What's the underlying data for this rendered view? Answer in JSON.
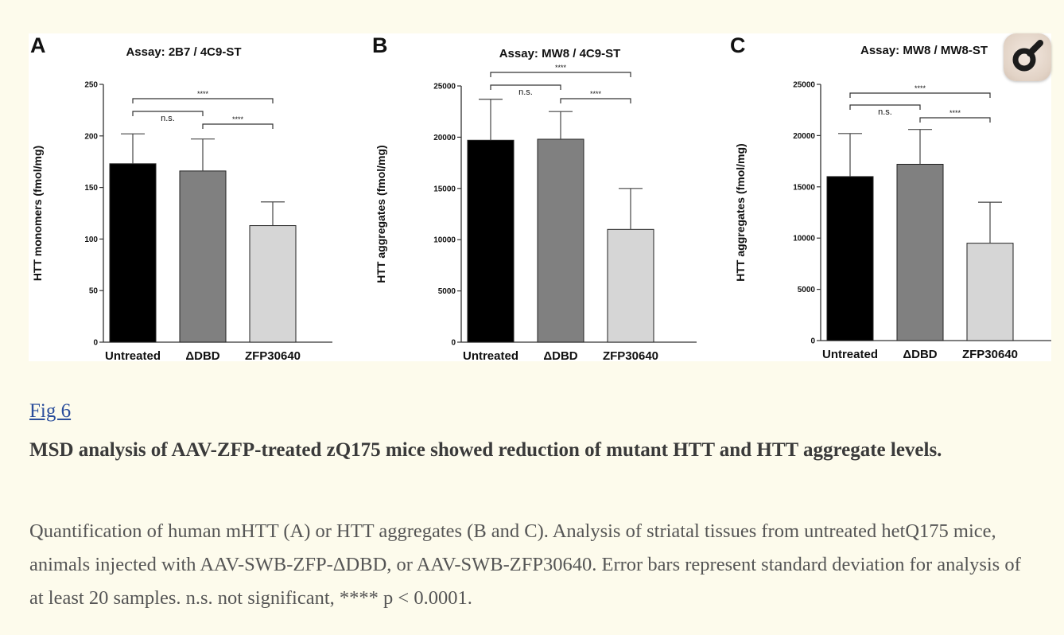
{
  "figure": {
    "link_text": "Fig 6",
    "title": "MSD analysis of AAV-ZFP-treated zQ175 mice showed reduction of mutant HTT and HTT aggregate levels.",
    "caption": "Quantification of human mHTT (A) or HTT aggregates (B and C). Analysis of striatal tissues from untreated hetQ175 mice, animals injected with AAV-SWB-ZFP-ΔDBD, or AAV-SWB-ZFP30640. Error bars represent standard deviation for analysis of at least 20 samples. n.s. not significant, **** p < 0.0001."
  },
  "zoom_icon": "magnifier-icon",
  "colors": {
    "untreated": "#000000",
    "ddbd": "#808080",
    "zfp": "#d6d6d6"
  },
  "chart_data": [
    {
      "type": "bar",
      "panel": "A",
      "title": "Assay: 2B7 / 4C9-ST",
      "ylabel": "HTT monomers (fmol/mg)",
      "xlabel": "",
      "categories": [
        "Untreated",
        "ΔDBD",
        "ZFP30640"
      ],
      "values": [
        173,
        166,
        113
      ],
      "errors": [
        29,
        31,
        23
      ],
      "ylim": [
        0,
        250
      ],
      "yticks": [
        0,
        50,
        100,
        150,
        200,
        250
      ],
      "yticklabels": [
        "0",
        "50",
        "100",
        "150",
        "200",
        "250"
      ],
      "significance": [
        {
          "from": 0,
          "to": 1,
          "label": "n.s."
        },
        {
          "from": 1,
          "to": 2,
          "label": "****"
        },
        {
          "from": 0,
          "to": 2,
          "label": "****"
        }
      ]
    },
    {
      "type": "bar",
      "panel": "B",
      "title": "Assay: MW8 / 4C9-ST",
      "ylabel": "HTT aggregates (fmol/mg)",
      "xlabel": "",
      "categories": [
        "Untreated",
        "ΔDBD",
        "ZFP30640"
      ],
      "values": [
        19700,
        19800,
        11000
      ],
      "errors": [
        4000,
        2700,
        4000
      ],
      "ylim": [
        0,
        25000
      ],
      "yticks": [
        0,
        5000,
        10000,
        15000,
        20000,
        25000
      ],
      "yticklabels": [
        "0",
        "5000",
        "10000",
        "15000",
        "20000",
        "25000"
      ],
      "significance": [
        {
          "from": 0,
          "to": 1,
          "label": "n.s."
        },
        {
          "from": 1,
          "to": 2,
          "label": "****"
        },
        {
          "from": 0,
          "to": 2,
          "label": "****"
        }
      ]
    },
    {
      "type": "bar",
      "panel": "C",
      "title": "Assay: MW8 / MW8-ST",
      "ylabel": "HTT aggregates (fmol/mg)",
      "xlabel": "",
      "categories": [
        "Untreated",
        "ΔDBD",
        "ZFP30640"
      ],
      "values": [
        16000,
        17200,
        9500
      ],
      "errors": [
        4200,
        3400,
        4000
      ],
      "ylim": [
        0,
        25000
      ],
      "yticks": [
        0,
        5000,
        10000,
        15000,
        20000,
        25000
      ],
      "yticklabels": [
        "0",
        "5000",
        "10000",
        "15000",
        "20000",
        "25000"
      ],
      "significance": [
        {
          "from": 0,
          "to": 1,
          "label": "n.s."
        },
        {
          "from": 1,
          "to": 2,
          "label": "****"
        },
        {
          "from": 0,
          "to": 2,
          "label": "****"
        }
      ]
    }
  ]
}
